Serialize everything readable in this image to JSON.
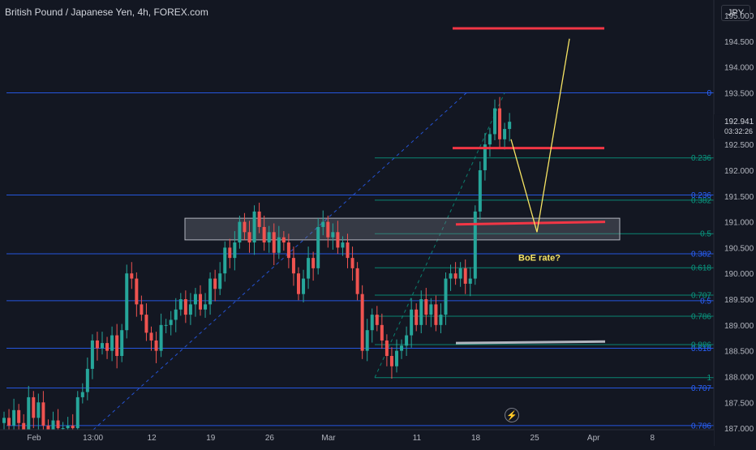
{
  "header": {
    "title": "British Pound / Japanese Yen, 4h, FOREX.com",
    "currency": "JPY",
    "bolt_icon": "lightning-icon"
  },
  "price_scale": {
    "price": "192.941",
    "countdown": "03:32:26",
    "price_color": "#26a69a"
  },
  "chart_data": {
    "type": "candlestick",
    "title": "British Pound / Japanese Yen, 4h, FOREX.com",
    "ylim": [
      186.97,
      195.3
    ],
    "y_ticks": [
      187.0,
      187.5,
      188.0,
      188.5,
      189.0,
      189.5,
      190.0,
      190.5,
      191.0,
      191.5,
      192.0,
      192.5,
      193.0,
      193.5,
      194.0,
      194.5,
      195.0
    ],
    "y_tick_labels": [
      "187.000",
      "187.500",
      "188.000",
      "188.500",
      "189.000",
      "189.500",
      "190.000",
      "190.500",
      "191.000",
      "191.500",
      "192.000",
      "192.500",
      "193.000",
      "193.500",
      "194.000",
      "194.500",
      "195.000"
    ],
    "x_labels": [
      "Feb",
      "13:00",
      "12",
      "19",
      "26",
      "Mar",
      "11",
      "18",
      "25",
      "Apr",
      "8"
    ],
    "x_label_bar": [
      0,
      12,
      24,
      36,
      48,
      60,
      78,
      90,
      102,
      114,
      126
    ],
    "last_price": 192.941,
    "closes": [
      187.2,
      187.05,
      187.35,
      187.1,
      186.95,
      187.6,
      187.2,
      187.5,
      187.05,
      186.95,
      187.15,
      187.0,
      187.0,
      187.05,
      187.0,
      187.6,
      187.7,
      188.15,
      188.7,
      188.55,
      188.65,
      188.5,
      188.8,
      188.4,
      188.9,
      190.0,
      189.9,
      189.4,
      189.2,
      188.85,
      188.7,
      188.5,
      189.0,
      189.0,
      189.1,
      189.3,
      189.5,
      189.2,
      189.4,
      189.6,
      189.3,
      189.4,
      189.9,
      189.7,
      190.0,
      190.5,
      190.3,
      190.6,
      191.0,
      190.8,
      190.6,
      191.2,
      190.9,
      190.6,
      190.8,
      190.4,
      190.7,
      190.6,
      190.3,
      190.0,
      189.6,
      189.9,
      190.3,
      190.1,
      190.9,
      191.0,
      190.7,
      190.8,
      190.5,
      190.6,
      190.3,
      190.1,
      189.6,
      188.5,
      188.9,
      189.2,
      189.0,
      188.7,
      188.4,
      188.2,
      188.5,
      188.6,
      188.8,
      189.3,
      189.0,
      189.5,
      189.2,
      189.4,
      189.0,
      189.2,
      189.9,
      190.0,
      189.9,
      190.1,
      189.8,
      189.9,
      191.2,
      192.0,
      192.5,
      192.7,
      193.2,
      192.6,
      192.8,
      192.94
    ],
    "levels": [
      {
        "label": "0",
        "value": 193.5,
        "scale_label": "0"
      },
      {
        "label": "0.236",
        "value": 192.24,
        "scale_label": "0.236"
      },
      {
        "label": "0.382",
        "value": 191.42,
        "scale_label": "0.382"
      },
      {
        "label": "0.5",
        "value": 190.77,
        "scale_label": "0.5"
      },
      {
        "label": "0.618",
        "value": 190.11,
        "scale_label": "0.618"
      },
      {
        "label": "0.786",
        "value": 189.17,
        "scale_label": "0.786"
      },
      {
        "label": "1",
        "value": 187.98,
        "scale_label": "1"
      },
      {
        "label": "0.236",
        "value": 191.52,
        "scale_label": "0.236"
      },
      {
        "label": "0.382",
        "value": 190.38,
        "scale_label": "0.382"
      },
      {
        "label": "0.5",
        "value": 189.47,
        "scale_label": "0.5"
      },
      {
        "label": "0.618",
        "value": 188.55,
        "scale_label": "0.618"
      },
      {
        "label": "0.707",
        "value": 189.58,
        "scale_label": "0.707"
      },
      {
        "label": "0.886",
        "value": 188.62,
        "scale_label": "0.886"
      },
      {
        "label": "0.707",
        "value": 187.78,
        "scale_label": "0.707"
      },
      {
        "label": "0.786",
        "value": 187.05,
        "scale_label": "0.786"
      }
    ],
    "support_zone": [
      190.65,
      191.07
    ],
    "annotation": "BoE rate?",
    "colors": {
      "up": "#26a69a",
      "down": "#ef5350",
      "fib_blue": "#2962ff",
      "fib_teal": "#089981",
      "resistance": "#f23645",
      "projection": "#f7e463",
      "support_gray": "#b2b5be"
    }
  }
}
